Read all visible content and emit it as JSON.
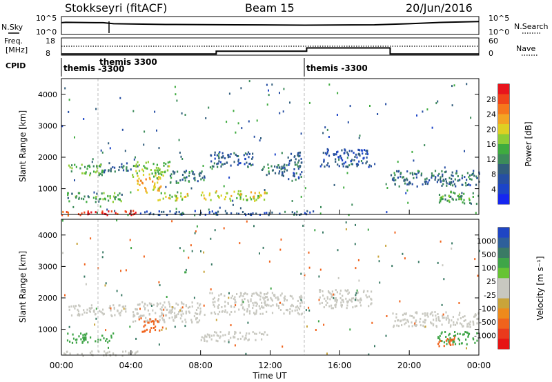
{
  "header": {
    "station": "Stokkseyri (fitACF)",
    "beam": "Beam 15",
    "date": "20/Jun/2016"
  },
  "noise_panel": {
    "left_label": "N.Sky",
    "left_ticks": [
      "10^5",
      "10^0"
    ],
    "right_label": "N.Search",
    "right_ticks": [
      "10^5",
      "10^0"
    ]
  },
  "freq_panel": {
    "left_label_1": "Freq.",
    "left_label_2": "[MHz]",
    "left_ticks": [
      "18",
      "8"
    ],
    "right_label": "Nave",
    "right_ticks": [
      "60",
      "0"
    ]
  },
  "cpid": {
    "label": "CPID",
    "segments": [
      {
        "label": "themis",
        "start_hour": 0.0
      },
      {
        "label": "themis 3300",
        "start_hour": 1.95
      },
      {
        "label": "-3300",
        "start_hour": 1.95
      },
      {
        "label": "themis -3300",
        "start_hour": 14.05
      }
    ]
  },
  "power_panel": {
    "ylabel": "Slant Range [km]",
    "yticks": [
      "4000",
      "3000",
      "2000",
      "1000"
    ],
    "colorbar_label": "Power [dB]",
    "colorbar_ticks": [
      "28",
      "24",
      "20",
      "16",
      "12",
      "8",
      "4"
    ],
    "colorbar_colors": [
      "#e8141c",
      "#f0441a",
      "#f6771c",
      "#f3a423",
      "#ded023",
      "#8ecd35",
      "#3fab3f",
      "#3c8b5a",
      "#315d7c",
      "#264ea3",
      "#1c44c8",
      "#1526f0"
    ]
  },
  "velocity_panel": {
    "ylabel": "Slant Range [km]",
    "yticks": [
      "4000",
      "3000",
      "2000",
      "1000"
    ],
    "colorbar_label": "Velocity [m s⁻¹]",
    "colorbar_ticks": [
      "1000",
      "500",
      "100",
      "25",
      "-25",
      "-100",
      "-500",
      "-1000"
    ],
    "colorbar_colors": [
      "#1f45c4",
      "#2e5f9a",
      "#3a7a65",
      "#3fa548",
      "#67c434",
      "#c8c8c0",
      "#c8c8c0",
      "#c9a43a",
      "#ee8a1c",
      "#f0631c",
      "#ea3a1c",
      "#e61414"
    ]
  },
  "x_axis": {
    "ticks": [
      "00:00",
      "04:00",
      "08:00",
      "12:00",
      "16:00",
      "20:00",
      "00:00"
    ],
    "label": "Time UT"
  },
  "chart_data": {
    "type": "heatmap",
    "title": "Stokkseyri (fitACF) Beam 15 20/Jun/2016",
    "xlabel": "Time UT",
    "ylabel": "Slant Range [km]",
    "xlim_hours": [
      0,
      24
    ],
    "ylim_km": [
      180,
      4500
    ],
    "nsky_log10": {
      "x": [
        0,
        0.25,
        2,
        2.4,
        3,
        6,
        10,
        14,
        18,
        20,
        22,
        24
      ],
      "y": [
        3.3,
        3.4,
        3.3,
        3.3,
        3.0,
        2.8,
        2.7,
        2.6,
        2.7,
        3.0,
        3.4,
        3.6
      ]
    },
    "freq_mhz": {
      "x": [
        0,
        8.9,
        8.9,
        14.1,
        14.1,
        18.9,
        18.9,
        24
      ],
      "y": [
        8.7,
        8.7,
        10.3,
        10.3,
        12.2,
        12.2,
        8.7,
        8.7
      ]
    },
    "nave_level": 26,
    "power_blobs": [
      {
        "t0": 0.0,
        "t1": 4.5,
        "r0": 180,
        "r1": 330,
        "dB": 28
      },
      {
        "t0": 4.5,
        "t1": 14.5,
        "r0": 190,
        "r1": 320,
        "dB": 6
      },
      {
        "t0": 0.3,
        "t1": 2.4,
        "r0": 1450,
        "r1": 1800,
        "dB": 14
      },
      {
        "t0": 2.4,
        "t1": 4.0,
        "r0": 1550,
        "r1": 1850,
        "dB": 8
      },
      {
        "t0": 4.0,
        "t1": 6.2,
        "r0": 1400,
        "r1": 1900,
        "dB": 16
      },
      {
        "t0": 6.2,
        "t1": 8.2,
        "r0": 1200,
        "r1": 1600,
        "dB": 9
      },
      {
        "t0": 0.3,
        "t1": 3.5,
        "r0": 600,
        "r1": 900,
        "dB": 13
      },
      {
        "t0": 4.3,
        "t1": 5.7,
        "r0": 900,
        "r1": 1400,
        "dB": 21
      },
      {
        "t0": 5.5,
        "t1": 7.5,
        "r0": 650,
        "r1": 900,
        "dB": 17
      },
      {
        "t0": 8.0,
        "t1": 11.8,
        "r0": 640,
        "r1": 950,
        "dB": 18
      },
      {
        "t0": 8.5,
        "t1": 11.0,
        "r0": 1700,
        "r1": 2200,
        "dB": 7
      },
      {
        "t0": 11.5,
        "t1": 12.7,
        "r0": 1450,
        "r1": 1800,
        "dB": 9
      },
      {
        "t0": 12.5,
        "t1": 13.8,
        "r0": 1300,
        "r1": 2200,
        "dB": 7
      },
      {
        "t0": 14.8,
        "t1": 17.8,
        "r0": 1700,
        "r1": 2300,
        "dB": 6
      },
      {
        "t0": 18.9,
        "t1": 24.0,
        "r0": 1100,
        "r1": 1600,
        "dB": 8
      },
      {
        "t0": 21.6,
        "t1": 24.0,
        "r0": 550,
        "r1": 950,
        "dB": 13
      }
    ],
    "velocity_blobs": [
      {
        "t0": 0.0,
        "t1": 4.5,
        "r0": 180,
        "r1": 330,
        "v": 0
      },
      {
        "t0": 0.3,
        "t1": 3.7,
        "r0": 1450,
        "r1": 1800,
        "v": 0
      },
      {
        "t0": 4.0,
        "t1": 8.2,
        "r0": 1250,
        "r1": 1900,
        "v": 0
      },
      {
        "t0": 0.3,
        "t1": 3.0,
        "r0": 600,
        "r1": 900,
        "v": 60
      },
      {
        "t0": 4.4,
        "t1": 5.6,
        "r0": 950,
        "r1": 1400,
        "v": -300
      },
      {
        "t0": 8.0,
        "t1": 11.8,
        "r0": 640,
        "r1": 950,
        "v": 0
      },
      {
        "t0": 8.5,
        "t1": 13.8,
        "r0": 1500,
        "r1": 2200,
        "v": 0
      },
      {
        "t0": 14.8,
        "t1": 17.8,
        "r0": 1700,
        "r1": 2300,
        "v": 0
      },
      {
        "t0": 18.9,
        "t1": 24.0,
        "r0": 1100,
        "r1": 1600,
        "v": 0
      },
      {
        "t0": 21.6,
        "t1": 24.0,
        "r0": 550,
        "r1": 950,
        "v": 60
      },
      {
        "t0": 21.6,
        "t1": 22.6,
        "r0": 450,
        "r1": 750,
        "v": -300
      }
    ]
  }
}
